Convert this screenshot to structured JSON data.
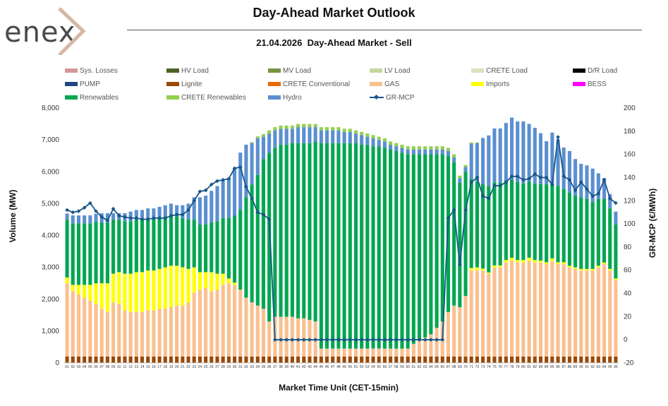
{
  "brand": {
    "logo_text": "enex"
  },
  "header": {
    "title": "Day-Ahead Market Outlook",
    "subtitle": "21.04.2026  Day-Ahead Market - Sell"
  },
  "legend": [
    {
      "name": "Sys. Losses",
      "color": "#d99694",
      "kind": "bar"
    },
    {
      "name": "HV Load",
      "color": "#4f6228",
      "kind": "bar"
    },
    {
      "name": "MV Load",
      "color": "#77933c",
      "kind": "bar"
    },
    {
      "name": "LV Load",
      "color": "#c3d69b",
      "kind": "bar"
    },
    {
      "name": "CRETE Load",
      "color": "#d7e4bd",
      "kind": "bar"
    },
    {
      "name": "D/R Load",
      "color": "#000000",
      "kind": "bar"
    },
    {
      "name": "PUMP",
      "color": "#1f497d",
      "kind": "bar"
    },
    {
      "name": "Lignite",
      "color": "#984807",
      "kind": "bar"
    },
    {
      "name": "CRETE Conventional",
      "color": "#e46c0a",
      "kind": "bar"
    },
    {
      "name": "GAS",
      "color": "#fac090",
      "kind": "bar"
    },
    {
      "name": "Imports",
      "color": "#ffff00",
      "kind": "bar"
    },
    {
      "name": "BESS",
      "color": "#ff00ff",
      "kind": "bar"
    },
    {
      "name": "Renewables",
      "color": "#00a650",
      "kind": "bar"
    },
    {
      "name": "CRETE Renewables",
      "color": "#92d050",
      "kind": "bar"
    },
    {
      "name": "Hydro",
      "color": "#5b8fd0",
      "kind": "bar"
    },
    {
      "name": "GR-MCP",
      "color": "#17558a",
      "kind": "line"
    }
  ],
  "chart_data": {
    "type": "bar",
    "stacked": true,
    "xlabel": "Market Time Unit (CET-15min)",
    "ylabel": "Volume (MW)",
    "y2label": "GR-MCP (€/MWh)",
    "ylim": [
      0,
      8000
    ],
    "yticks": [
      0,
      1000,
      2000,
      3000,
      4000,
      5000,
      6000,
      7000,
      8000
    ],
    "ytick_labels": [
      "0",
      "1,000",
      "2,000",
      "3,000",
      "4,000",
      "5,000",
      "6,000",
      "7,000",
      "8,000"
    ],
    "y2lim": [
      -20,
      200
    ],
    "y2ticks": [
      -20,
      0,
      20,
      40,
      60,
      80,
      100,
      120,
      140,
      160,
      180,
      200
    ],
    "grid": false,
    "legend_position": "top",
    "categories": [
      "01",
      "02",
      "03",
      "04",
      "05",
      "06",
      "07",
      "08",
      "09",
      "10",
      "11",
      "12",
      "13",
      "14",
      "15",
      "16",
      "17",
      "18",
      "19",
      "20",
      "21",
      "22",
      "23",
      "24",
      "25",
      "26",
      "27",
      "28",
      "29",
      "30",
      "31",
      "32",
      "33",
      "34",
      "35",
      "36",
      "37",
      "38",
      "39",
      "40",
      "41",
      "42",
      "43",
      "44",
      "45",
      "46",
      "47",
      "48",
      "49",
      "50",
      "51",
      "52",
      "53",
      "54",
      "55",
      "56",
      "57",
      "58",
      "59",
      "60",
      "61",
      "62",
      "63",
      "64",
      "65",
      "66",
      "67",
      "68",
      "69",
      "70",
      "71",
      "72",
      "73",
      "74",
      "75",
      "76",
      "77",
      "78",
      "79",
      "80",
      "81",
      "82",
      "83",
      "84",
      "85",
      "86",
      "87",
      "88",
      "89",
      "90",
      "91",
      "92",
      "93",
      "94",
      "95",
      "96"
    ],
    "series": [
      {
        "name": "Lignite",
        "color": "#984807",
        "values": [
          200,
          200,
          200,
          200,
          200,
          200,
          200,
          200,
          200,
          200,
          200,
          200,
          200,
          200,
          200,
          200,
          200,
          200,
          200,
          200,
          200,
          200,
          200,
          200,
          200,
          200,
          200,
          200,
          200,
          200,
          200,
          200,
          200,
          200,
          200,
          200,
          200,
          200,
          200,
          200,
          200,
          200,
          200,
          200,
          200,
          200,
          200,
          200,
          200,
          200,
          200,
          200,
          200,
          200,
          200,
          200,
          200,
          200,
          200,
          200,
          200,
          200,
          200,
          200,
          200,
          200,
          200,
          200,
          200,
          200,
          200,
          200,
          200,
          200,
          200,
          200,
          200,
          200,
          200,
          200,
          200,
          200,
          200,
          200,
          200,
          200,
          200,
          200,
          200,
          200,
          200,
          200,
          200,
          200,
          200,
          200
        ]
      },
      {
        "name": "GAS",
        "color": "#fac090",
        "values": [
          2300,
          2050,
          1950,
          1850,
          1750,
          1650,
          1500,
          1400,
          1700,
          1650,
          1450,
          1400,
          1400,
          1400,
          1450,
          1450,
          1500,
          1500,
          1550,
          1600,
          1600,
          1700,
          2000,
          2100,
          2150,
          2050,
          2100,
          2250,
          2300,
          2250,
          2100,
          1850,
          1700,
          1600,
          1500,
          1100,
          1250,
          1250,
          1250,
          1250,
          1200,
          1200,
          1150,
          1100,
          250,
          250,
          250,
          250,
          250,
          250,
          250,
          250,
          250,
          250,
          250,
          250,
          250,
          250,
          250,
          250,
          400,
          500,
          600,
          700,
          900,
          1100,
          1400,
          1600,
          1550,
          1900,
          2700,
          2700,
          2700,
          2600,
          2800,
          2800,
          2950,
          3000,
          2950,
          2950,
          3000,
          2950,
          2950,
          2900,
          3000,
          2900,
          2900,
          2800,
          2750,
          2700,
          2700,
          2700,
          2800,
          2900,
          2700,
          2400
        ]
      },
      {
        "name": "Imports",
        "color": "#ffff00",
        "values": [
          180,
          200,
          300,
          400,
          500,
          650,
          800,
          900,
          900,
          1000,
          1150,
          1200,
          1250,
          1250,
          1250,
          1250,
          1250,
          1300,
          1300,
          1250,
          1200,
          1050,
          800,
          550,
          500,
          600,
          500,
          350,
          150,
          70,
          0,
          0,
          0,
          0,
          0,
          0,
          0,
          0,
          0,
          0,
          0,
          0,
          0,
          0,
          0,
          0,
          0,
          0,
          0,
          0,
          0,
          0,
          0,
          0,
          0,
          0,
          0,
          0,
          0,
          0,
          0,
          0,
          0,
          0,
          0,
          0,
          0,
          0,
          0,
          0,
          80,
          100,
          60,
          40,
          60,
          60,
          80,
          100,
          80,
          80,
          100,
          80,
          60,
          60,
          80,
          60,
          60,
          50,
          50,
          50,
          50,
          50,
          50,
          50,
          50,
          50
        ]
      },
      {
        "name": "Renewables",
        "color": "#00a650",
        "values": [
          1810,
          1930,
          1930,
          1930,
          1930,
          1930,
          1900,
          1900,
          1700,
          1650,
          1650,
          1650,
          1650,
          1650,
          1650,
          1650,
          1650,
          1600,
          1600,
          1550,
          1550,
          1550,
          1500,
          1500,
          1500,
          1550,
          1650,
          1750,
          1900,
          2100,
          2500,
          3150,
          3700,
          4100,
          4700,
          5300,
          5300,
          5400,
          5400,
          5450,
          5500,
          5500,
          5550,
          5650,
          6450,
          6450,
          6450,
          6450,
          6450,
          6450,
          6450,
          6400,
          6400,
          6350,
          6350,
          6300,
          6250,
          6200,
          6150,
          6100,
          5950,
          5850,
          5750,
          5650,
          5450,
          5250,
          4900,
          4500,
          3900,
          3900,
          2800,
          2700,
          2650,
          2700,
          2600,
          2600,
          2500,
          2450,
          2450,
          2400,
          2400,
          2400,
          2400,
          2450,
          2350,
          2400,
          2300,
          2300,
          2250,
          2250,
          2200,
          2100,
          2100,
          2000,
          1900,
          1700
        ]
      },
      {
        "name": "Hydro",
        "color": "#5b8fd0",
        "values": [
          200,
          250,
          250,
          250,
          250,
          250,
          300,
          300,
          200,
          200,
          250,
          300,
          300,
          300,
          300,
          300,
          300,
          350,
          350,
          350,
          400,
          500,
          700,
          850,
          900,
          1000,
          1100,
          1200,
          1250,
          1500,
          1800,
          1650,
          1300,
          1150,
          700,
          600,
          550,
          500,
          500,
          450,
          500,
          500,
          500,
          450,
          400,
          400,
          400,
          400,
          350,
          350,
          300,
          300,
          250,
          250,
          200,
          200,
          150,
          150,
          150,
          150,
          150,
          150,
          150,
          150,
          150,
          150,
          150,
          150,
          150,
          150,
          1100,
          1200,
          1450,
          1600,
          1700,
          1700,
          1800,
          1950,
          1900,
          1950,
          1800,
          1750,
          1600,
          1350,
          1600,
          1450,
          1300,
          1300,
          1150,
          1050,
          1050,
          1050,
          800,
          650,
          450,
          400
        ]
      },
      {
        "name": "CRETE Renewables",
        "color": "#92d050",
        "values": [
          0,
          0,
          0,
          0,
          0,
          0,
          0,
          0,
          0,
          0,
          0,
          0,
          0,
          0,
          0,
          0,
          0,
          0,
          0,
          0,
          0,
          0,
          0,
          0,
          0,
          0,
          0,
          0,
          0,
          0,
          0,
          0,
          30,
          60,
          80,
          100,
          100,
          100,
          100,
          100,
          100,
          100,
          100,
          100,
          100,
          100,
          100,
          100,
          100,
          100,
          100,
          100,
          100,
          100,
          100,
          100,
          100,
          100,
          100,
          100,
          100,
          100,
          100,
          100,
          100,
          100,
          100,
          100,
          80,
          60,
          40,
          20,
          0,
          0,
          0,
          0,
          0,
          0,
          0,
          0,
          0,
          0,
          0,
          0,
          0,
          0,
          0,
          0,
          0,
          0,
          0,
          0,
          0,
          0,
          0,
          0
        ]
      }
    ],
    "line": {
      "name": "GR-MCP",
      "color": "#17558a",
      "axis": "right",
      "values": [
        112,
        110,
        111,
        114,
        118,
        111,
        106,
        103,
        113,
        107,
        106,
        105,
        105,
        104,
        104,
        105,
        105,
        105,
        107,
        108,
        108,
        112,
        120,
        128,
        129,
        134,
        137,
        138,
        139,
        148,
        149,
        132,
        122,
        110,
        108,
        104,
        0,
        0,
        0,
        0,
        0,
        0,
        0,
        0,
        0,
        0,
        0,
        0,
        0,
        0,
        0,
        0,
        0,
        0,
        0,
        0,
        0,
        0,
        0,
        0,
        0,
        0,
        0,
        0,
        0,
        0,
        105,
        112,
        65,
        112,
        136,
        140,
        124,
        122,
        133,
        133,
        136,
        141,
        141,
        138,
        139,
        143,
        140,
        140,
        134,
        175,
        141,
        138,
        129,
        136,
        130,
        124,
        126,
        138,
        122,
        118
      ]
    }
  }
}
